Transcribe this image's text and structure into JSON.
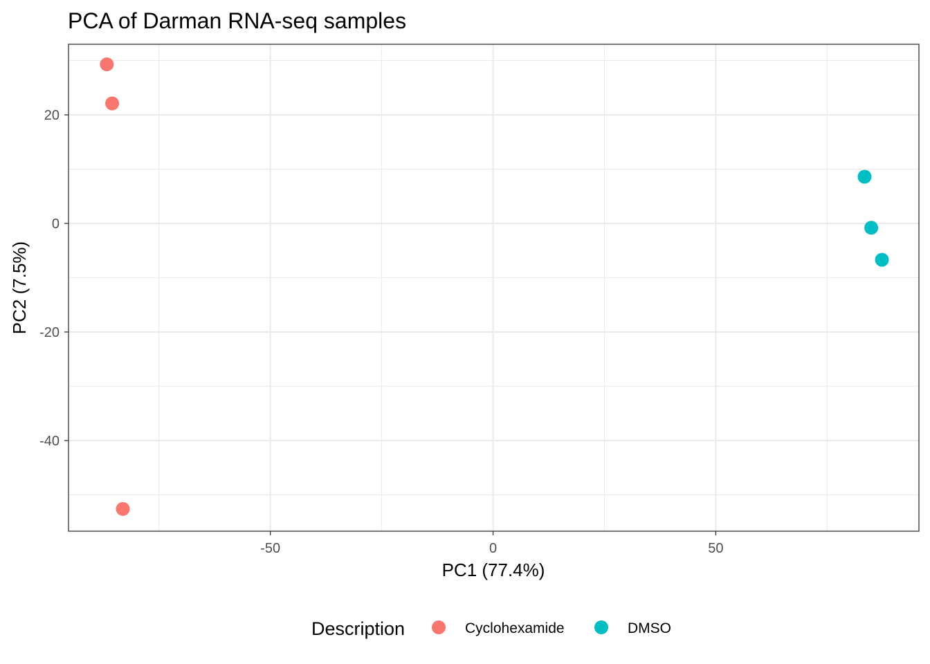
{
  "chart_data": {
    "type": "scatter",
    "title": "PCA of Darman RNA-seq samples",
    "xlabel": "PC1 (77.4%)",
    "ylabel": "PC2 (7.5%)",
    "xlim": [
      -95.3,
      95.6
    ],
    "ylim": [
      -56.7,
      33.0
    ],
    "x_ticks": [
      -50,
      0,
      50
    ],
    "y_ticks": [
      -40,
      -20,
      0,
      20
    ],
    "x_tick_labels": [
      "-50",
      "0",
      "50"
    ],
    "y_tick_labels": [
      "-40",
      "-20",
      "0",
      "20"
    ],
    "grid": true,
    "legend": {
      "title": "Description",
      "position": "bottom"
    },
    "series": [
      {
        "name": "Cyclohexamide",
        "color": "#F8766D",
        "points": [
          {
            "x": -86.7,
            "y": 29.3
          },
          {
            "x": -85.5,
            "y": 22.1
          },
          {
            "x": -83.1,
            "y": -52.6
          }
        ]
      },
      {
        "name": "DMSO",
        "color": "#00BFC4",
        "points": [
          {
            "x": 83.4,
            "y": 8.6
          },
          {
            "x": 84.9,
            "y": -0.8
          },
          {
            "x": 87.3,
            "y": -6.7
          }
        ]
      }
    ]
  }
}
